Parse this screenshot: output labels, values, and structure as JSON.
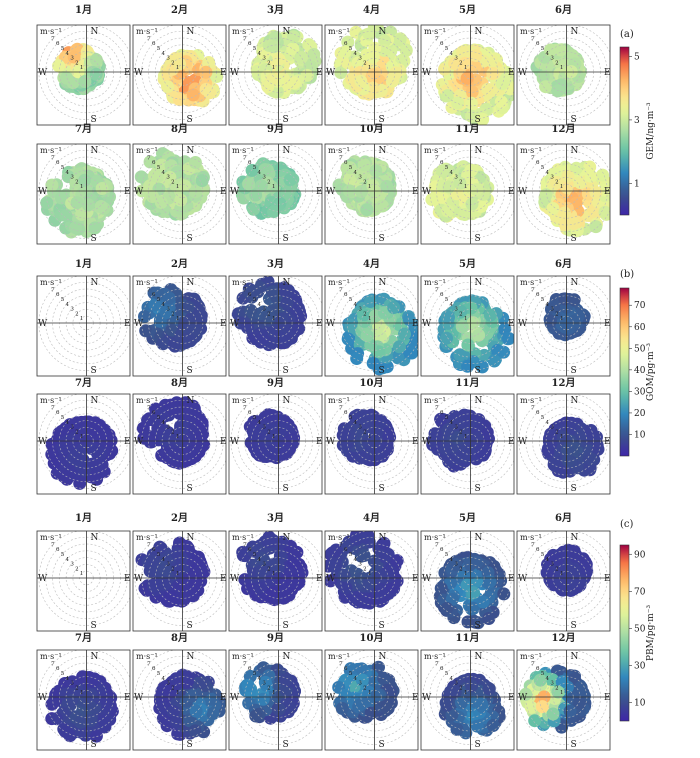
{
  "chart_data": [
    {
      "type": "polar-rose",
      "panel": "(a)",
      "variable": "GEM",
      "colorbar_label": "GEM/ng·m⁻³",
      "colorbar_ticks": [
        "1",
        "3",
        "5"
      ],
      "colorbar_range": [
        0,
        5.3
      ],
      "radial_unit": "m·s⁻¹",
      "radial_ticks": [
        "1",
        "2",
        "3",
        "4",
        "5",
        "6",
        "7"
      ],
      "directions": [
        "N",
        "E",
        "S",
        "W"
      ],
      "months": [
        {
          "label": "1月",
          "mean": 2.6,
          "max": 4.5,
          "dir": 290,
          "extent": 0.55,
          "hot_dir": 320,
          "hot_r": 0.55
        },
        {
          "label": "2月",
          "mean": 3.3,
          "max": 5.0,
          "dir": 130,
          "extent": 0.7,
          "hot_dir": 135,
          "hot_r": 0.25
        },
        {
          "label": "3月",
          "mean": 3.2,
          "max": 3.7,
          "dir": 40,
          "extent": 0.8,
          "hot_dir": 180,
          "hot_r": 0.0
        },
        {
          "label": "4月",
          "mean": 3.4,
          "max": 4.2,
          "dir": 350,
          "extent": 0.95,
          "hot_dir": 180,
          "hot_r": 0.05
        },
        {
          "label": "5月",
          "mean": 3.4,
          "max": 4.6,
          "dir": 160,
          "extent": 0.95,
          "hot_dir": 170,
          "hot_r": 0.12
        },
        {
          "label": "6月",
          "mean": 2.9,
          "max": 3.1,
          "dir": 280,
          "extent": 0.6,
          "hot_dir": 90,
          "hot_r": 0.1
        },
        {
          "label": "7月",
          "mean": 2.8,
          "max": 3.0,
          "dir": 220,
          "extent": 0.85,
          "hot_dir": 200,
          "hot_r": 0.2
        },
        {
          "label": "8月",
          "mean": 2.9,
          "max": 3.1,
          "dir": 310,
          "extent": 0.85,
          "hot_dir": 300,
          "hot_r": 0.3
        },
        {
          "label": "9月",
          "mean": 2.3,
          "max": 2.8,
          "dir": 280,
          "extent": 0.7,
          "hot_dir": 280,
          "hot_r": 0.35
        },
        {
          "label": "10月",
          "mean": 2.9,
          "max": 3.1,
          "dir": 300,
          "extent": 0.7,
          "hot_dir": 300,
          "hot_r": 0.4
        },
        {
          "label": "11月",
          "mean": 3.3,
          "max": 3.6,
          "dir": 260,
          "extent": 0.75,
          "hot_dir": 250,
          "hot_r": 0.5
        },
        {
          "label": "12月",
          "mean": 3.4,
          "max": 4.6,
          "dir": 120,
          "extent": 0.9,
          "hot_dir": 140,
          "hot_r": 0.3
        }
      ]
    },
    {
      "type": "polar-rose",
      "panel": "(b)",
      "variable": "GOM",
      "colorbar_label": "GOM/pg·m⁻³",
      "colorbar_ticks": [
        "10",
        "20",
        "30",
        "40",
        "50",
        "60",
        "70"
      ],
      "colorbar_range": [
        0,
        78
      ],
      "radial_unit": "m·s⁻¹",
      "radial_ticks": [
        "1",
        "2",
        "3",
        "4",
        "5",
        "6",
        "7"
      ],
      "directions": [
        "N",
        "E",
        "S",
        "W"
      ],
      "months": [
        {
          "label": "1月",
          "mean": null,
          "max": null,
          "dir": 0,
          "extent": 0,
          "hot_dir": 0,
          "hot_r": 0
        },
        {
          "label": "2月",
          "mean": 8,
          "max": 18,
          "dir": 300,
          "extent": 0.8,
          "hot_dir": 300,
          "hot_r": 0.6
        },
        {
          "label": "3月",
          "mean": 6,
          "max": 12,
          "dir": 320,
          "extent": 0.85,
          "hot_dir": 320,
          "hot_r": 0.5
        },
        {
          "label": "4月",
          "mean": 22,
          "max": 48,
          "dir": 150,
          "extent": 0.95,
          "hot_dir": 140,
          "hot_r": 0.2
        },
        {
          "label": "5月",
          "mean": 22,
          "max": 45,
          "dir": 160,
          "extent": 0.9,
          "hot_dir": 160,
          "hot_r": 0.15
        },
        {
          "label": "6月",
          "mean": 8,
          "max": 14,
          "dir": 0,
          "extent": 0.5,
          "hot_dir": 0,
          "hot_r": 0.1
        },
        {
          "label": "7月",
          "mean": 4,
          "max": 6,
          "dir": 200,
          "extent": 0.85,
          "hot_dir": 200,
          "hot_r": 0.3
        },
        {
          "label": "8月",
          "mean": 4,
          "max": 6,
          "dir": 320,
          "extent": 0.85,
          "hot_dir": 320,
          "hot_r": 0.3
        },
        {
          "label": "9月",
          "mean": 4,
          "max": 6,
          "dir": 300,
          "extent": 0.6,
          "hot_dir": 300,
          "hot_r": 0.2
        },
        {
          "label": "10月",
          "mean": 5,
          "max": 8,
          "dir": 290,
          "extent": 0.65,
          "hot_dir": 290,
          "hot_r": 0.3
        },
        {
          "label": "11月",
          "mean": 5,
          "max": 8,
          "dir": 280,
          "extent": 0.75,
          "hot_dir": 280,
          "hot_r": 0.3
        },
        {
          "label": "12月",
          "mean": 5,
          "max": 10,
          "dir": 140,
          "extent": 0.7,
          "hot_dir": 140,
          "hot_r": 0.3
        }
      ]
    },
    {
      "type": "polar-rose",
      "panel": "(c)",
      "variable": "PBM",
      "colorbar_label": "PBM/pg·m⁻³",
      "colorbar_ticks": [
        "10",
        "30",
        "50",
        "70",
        "90"
      ],
      "colorbar_range": [
        0,
        95
      ],
      "radial_unit": "m·s⁻¹",
      "radial_ticks": [
        "1",
        "2",
        "3",
        "4",
        "5",
        "6",
        "7"
      ],
      "directions": [
        "N",
        "E",
        "S",
        "W"
      ],
      "months": [
        {
          "label": "1月",
          "mean": null,
          "max": null,
          "dir": 0,
          "extent": 0,
          "hot_dir": 0,
          "hot_r": 0
        },
        {
          "label": "2月",
          "mean": 5,
          "max": 10,
          "dir": 300,
          "extent": 0.85,
          "hot_dir": 300,
          "hot_r": 0.5
        },
        {
          "label": "3月",
          "mean": 5,
          "max": 10,
          "dir": 320,
          "extent": 0.85,
          "hot_dir": 320,
          "hot_r": 0.5
        },
        {
          "label": "4月",
          "mean": 6,
          "max": 14,
          "dir": 310,
          "extent": 0.95,
          "hot_dir": 310,
          "hot_r": 0.4
        },
        {
          "label": "5月",
          "mean": 12,
          "max": 30,
          "dir": 170,
          "extent": 0.9,
          "hot_dir": 180,
          "hot_r": 0.25
        },
        {
          "label": "6月",
          "mean": 5,
          "max": 8,
          "dir": 0,
          "extent": 0.55,
          "hot_dir": 0,
          "hot_r": 0.1
        },
        {
          "label": "7月",
          "mean": 5,
          "max": 12,
          "dir": 200,
          "extent": 0.85,
          "hot_dir": 200,
          "hot_r": 0.3
        },
        {
          "label": "8月",
          "mean": 6,
          "max": 22,
          "dir": 140,
          "extent": 0.85,
          "hot_dir": 120,
          "hot_r": 0.5
        },
        {
          "label": "9月",
          "mean": 8,
          "max": 28,
          "dir": 290,
          "extent": 0.7,
          "hot_dir": 290,
          "hot_r": 0.5
        },
        {
          "label": "10月",
          "mean": 12,
          "max": 30,
          "dir": 300,
          "extent": 0.75,
          "hot_dir": 300,
          "hot_r": 0.5
        },
        {
          "label": "11月",
          "mean": 9,
          "max": 25,
          "dir": 170,
          "extent": 0.75,
          "hot_dir": 170,
          "hot_r": 0.4
        },
        {
          "label": "12月",
          "mean": 14,
          "max": 80,
          "dir": 260,
          "extent": 0.8,
          "hot_dir": 265,
          "hot_r": 0.55
        }
      ]
    }
  ]
}
